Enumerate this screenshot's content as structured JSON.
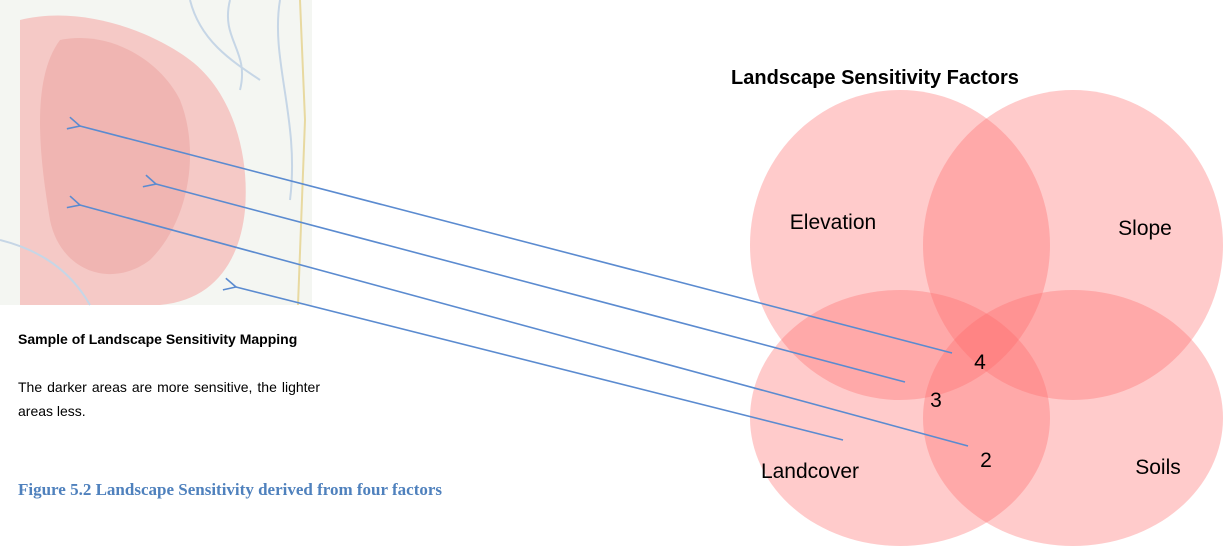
{
  "map_caption": {
    "title": "Sample of Landscape Sensitivity Mapping",
    "description": "The darker areas are more sensitive, the lighter areas less."
  },
  "figure_caption": "Figure 5.2 Landscape Sensitivity derived from four factors",
  "diagram": {
    "title": "Landscape Sensitivity Factors",
    "nodes": [
      {
        "label": "Elevation"
      },
      {
        "label": "Slope"
      },
      {
        "label": "Landcover"
      },
      {
        "label": "Soils"
      }
    ],
    "overlap_labels": [
      "4",
      "3",
      "2"
    ]
  }
}
